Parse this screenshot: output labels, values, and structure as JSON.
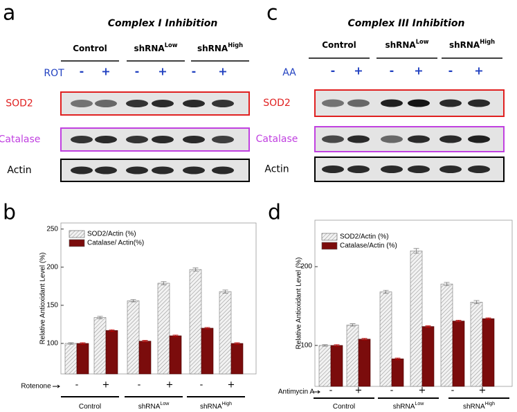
{
  "blots": [
    {
      "letter": "a",
      "title": "Complex I Inhibition",
      "groups": [
        {
          "text": "Control"
        },
        {
          "text": "shRNA",
          "sup": "Low"
        },
        {
          "text": "shRNA",
          "sup": "High"
        }
      ],
      "treatment": "ROT",
      "signs": [
        "-",
        "+",
        "-",
        "+",
        "-",
        "+"
      ],
      "rows": [
        {
          "label": "SOD2",
          "color": "#e02020"
        },
        {
          "label": "Catalase",
          "color": "#c040e0"
        },
        {
          "label": "Actin",
          "color": "#000000"
        }
      ]
    },
    {
      "letter": "c",
      "title": "Complex III Inhibition",
      "groups": [
        {
          "text": "Control"
        },
        {
          "text": "shRNA",
          "sup": "Low"
        },
        {
          "text": "shRNA",
          "sup": "High"
        }
      ],
      "treatment": "AA",
      "signs": [
        "-",
        "+",
        "-",
        "+",
        "-",
        "+"
      ],
      "rows": [
        {
          "label": "SOD2",
          "color": "#e02020"
        },
        {
          "label": "Catalase",
          "color": "#c040e0"
        },
        {
          "label": "Actin",
          "color": "#000000"
        }
      ]
    }
  ],
  "chart_data": [
    {
      "type": "bar",
      "panel": "b",
      "ylabel": "Relative Antioxidant Level (%)",
      "xlabel": "Rotenone",
      "categories": [
        "-",
        "+",
        "-",
        "+",
        "-",
        "+"
      ],
      "groups": [
        {
          "text": "Control"
        },
        {
          "text": "shRNA",
          "sup": "Low"
        },
        {
          "text": "shRNA",
          "sup": "High"
        }
      ],
      "series": [
        {
          "name": "SOD2/Actin (%)",
          "color": "#d9d9d9",
          "hatch": true,
          "values": [
            100,
            134,
            156,
            179,
            197,
            168
          ],
          "errors": [
            1,
            1.5,
            1.5,
            2,
            2,
            2
          ]
        },
        {
          "name": "Catalase/ Actin(%)",
          "color": "#7b0c0c",
          "hatch": false,
          "values": [
            100,
            117,
            103,
            110,
            120,
            100
          ],
          "errors": [
            1,
            1,
            1,
            1,
            1,
            1
          ]
        }
      ],
      "ylim": [
        60,
        258
      ],
      "yticks": [
        100,
        150,
        200,
        250
      ],
      "grid": false
    },
    {
      "type": "bar",
      "panel": "d",
      "ylabel": "Relative Antioxidant Level (%)",
      "xlabel": "Antimycin A",
      "categories": [
        "-",
        "+",
        "-",
        "+",
        "-",
        "+"
      ],
      "groups": [
        {
          "text": "Control"
        },
        {
          "text": "shRNA",
          "sup": "Low"
        },
        {
          "text": "shRNA",
          "sup": "High"
        }
      ],
      "series": [
        {
          "name": "SOD2/Actin (%)",
          "color": "#d9d9d9",
          "hatch": true,
          "values": [
            100,
            126,
            168,
            220,
            178,
            155
          ],
          "errors": [
            1,
            1.5,
            2,
            3,
            2,
            2
          ]
        },
        {
          "name": "Catalase/Actin (%)",
          "color": "#7b0c0c",
          "hatch": false,
          "values": [
            100,
            108,
            83,
            124,
            131,
            134
          ],
          "errors": [
            1,
            1,
            1,
            1,
            1,
            1
          ]
        }
      ],
      "ylim": [
        48,
        259
      ],
      "yticks": [
        100,
        200
      ],
      "grid": false
    }
  ]
}
